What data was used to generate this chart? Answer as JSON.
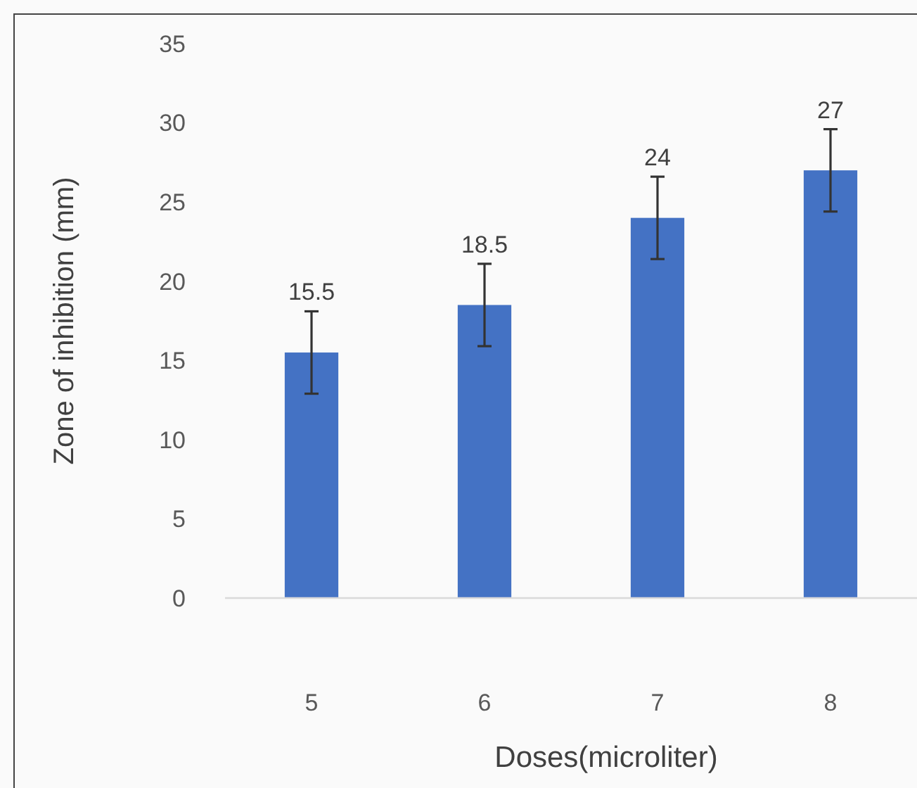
{
  "chart_data": {
    "type": "bar",
    "xlabel": "Doses(microliter)",
    "ylabel": "Zone of inhibition (mm)",
    "categories": [
      "5",
      "6",
      "7",
      "8"
    ],
    "values": [
      15.5,
      18.5,
      24,
      27
    ],
    "errors": [
      2.6,
      2.6,
      2.6,
      2.6
    ],
    "color": "#4472c4",
    "ylim": [
      0,
      35
    ],
    "yticks": [
      0,
      5,
      10,
      15,
      20,
      25,
      30,
      35
    ],
    "data_labels": true,
    "grid": false
  }
}
